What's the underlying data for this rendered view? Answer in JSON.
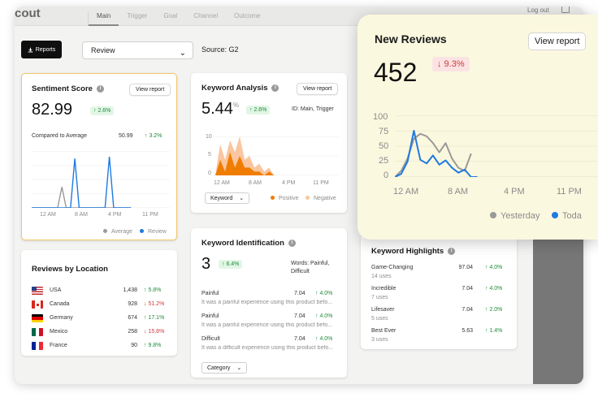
{
  "topbar": {
    "brand": "cout",
    "nav": [
      "Main",
      "Trigger",
      "Goal",
      "Channel",
      "Outcome"
    ],
    "active": "Main",
    "logout": "Log out"
  },
  "toolbar": {
    "reports_label": "Reports",
    "select_value": "Review",
    "source": "Source: G2"
  },
  "sentiment": {
    "title": "Sentiment Score",
    "view_report": "View report",
    "value": "82.99",
    "change": "↑ 2.6%",
    "compare_label": "Compared to Average",
    "compare_value": "50.99",
    "compare_change": "↑ 3.2%",
    "y_ticks": [],
    "x_ticks": [
      "12 AM",
      "8 AM",
      "4 PM",
      "11 PM"
    ],
    "legend": [
      "Average",
      "Review"
    ]
  },
  "keyword_analysis": {
    "title": "Keyword Analysis",
    "view_report": "View report",
    "value": "5.44",
    "unit": "%",
    "change": "↑ 2.6%",
    "id_label": "ID: Main, Trigger",
    "y_ticks": [
      "10",
      "5",
      "0"
    ],
    "x_ticks": [
      "12 AM",
      "8 AM",
      "4 PM",
      "11 PM"
    ],
    "dropdown": "Keyword",
    "legend": [
      "Positive",
      "Negative"
    ]
  },
  "keyword_identification": {
    "title": "Keyword Identification",
    "value": "3",
    "change": "↑ 6.4%",
    "words": "Words: Painful, Difficult",
    "items": [
      {
        "word": "Painful",
        "score": "7.04",
        "change": "↑ 4.0%",
        "snippet": "It was a painful experience using this product befo..."
      },
      {
        "word": "Painful",
        "score": "7.04",
        "change": "↑ 4.0%",
        "snippet": "It was a painful experience using this product befo..."
      },
      {
        "word": "Difficult",
        "score": "7.04",
        "change": "↑ 4.0%",
        "snippet": "It was a difficult experience using this product befo..."
      }
    ],
    "dropdown": "Category"
  },
  "reviews_by_location": {
    "title": "Reviews by Location",
    "rows": [
      {
        "country": "USA",
        "count": "1,438",
        "change": "↑ 5.8%",
        "dir": "up"
      },
      {
        "country": "Canada",
        "count": "928",
        "change": "↓ 51.2%",
        "dir": "down"
      },
      {
        "country": "Germany",
        "count": "674",
        "change": "↑ 17.1%",
        "dir": "up"
      },
      {
        "country": "Mexico",
        "count": "258",
        "change": "↓ 15.8%",
        "dir": "down"
      },
      {
        "country": "France",
        "count": "90",
        "change": "↑ 9.8%",
        "dir": "up"
      }
    ]
  },
  "keyword_highlights": {
    "title": "Keyword Highlights",
    "rows": [
      {
        "word": "Game-Changing",
        "uses": "14 uses",
        "score": "97.04",
        "change": "↑ 4.0%"
      },
      {
        "word": "Incredible",
        "uses": "7 uses",
        "score": "7.04",
        "change": "↑ 4.0%"
      },
      {
        "word": "Lifesaver",
        "uses": "5 uses",
        "score": "7.04",
        "change": "↑ 2.0%"
      },
      {
        "word": "Best Ever",
        "uses": "3 uses",
        "score": "5.63",
        "change": "↑ 1.4%"
      }
    ]
  },
  "new_reviews": {
    "title": "New Reviews",
    "view_report": "View report",
    "value": "452",
    "change": "↓ 9.3%",
    "y_ticks": [
      "100",
      "75",
      "50",
      "25",
      "0"
    ],
    "x_ticks": [
      "12 AM",
      "8 AM",
      "4 PM",
      "11 PM"
    ],
    "legend": [
      "Yesterday",
      "Toda"
    ]
  },
  "colors": {
    "yesterday": "#9a9a98",
    "today": "#1f7ae0",
    "positive": "#f07d00",
    "negative": "#f9c6a0",
    "up": "#1f8a3b",
    "down": "#d03838"
  },
  "chart_data": [
    {
      "type": "line",
      "title": "Sentiment Score",
      "x": [
        0,
        1,
        2,
        3,
        4,
        5,
        6,
        7,
        8,
        9,
        10,
        11,
        12,
        13,
        14,
        15,
        16,
        17,
        18,
        19,
        20,
        21,
        22,
        23
      ],
      "series": [
        {
          "name": "Average",
          "values": [
            0,
            0,
            0,
            0,
            0,
            0,
            0,
            22,
            0,
            0,
            0,
            0,
            0,
            0,
            0,
            0,
            0,
            0,
            0,
            0,
            0,
            0,
            0,
            0
          ]
        },
        {
          "name": "Review",
          "values": [
            0,
            0,
            0,
            0,
            0,
            0,
            0,
            0,
            0,
            0,
            52,
            0,
            0,
            0,
            0,
            0,
            0,
            0,
            54,
            0,
            0,
            0,
            0,
            0
          ]
        }
      ]
    },
    {
      "type": "area",
      "title": "Keyword Analysis",
      "ylim": [
        0,
        10
      ],
      "x": [
        0,
        1,
        2,
        3,
        4,
        5,
        6,
        7,
        8,
        9,
        10,
        11,
        12
      ],
      "series": [
        {
          "name": "Negative",
          "values": [
            0,
            8,
            4,
            9,
            6,
            10,
            4,
            5,
            2,
            3,
            1,
            2,
            0
          ]
        },
        {
          "name": "Positive",
          "values": [
            0,
            4,
            1,
            6,
            2,
            5,
            2,
            2,
            1,
            1,
            0,
            1,
            0
          ]
        }
      ]
    },
    {
      "type": "line",
      "title": "New Reviews",
      "ylim": [
        0,
        100
      ],
      "x": [
        0,
        1,
        2,
        3,
        4,
        5,
        6,
        7,
        8,
        9,
        10,
        11,
        12,
        13
      ],
      "series": [
        {
          "name": "Yesterday",
          "values": [
            0,
            10,
            30,
            62,
            70,
            66,
            55,
            40,
            55,
            30,
            15,
            10,
            38,
            null
          ]
        },
        {
          "name": "Today",
          "values": [
            0,
            5,
            25,
            75,
            28,
            22,
            35,
            20,
            27,
            15,
            7,
            12,
            0,
            0
          ]
        }
      ]
    }
  ]
}
